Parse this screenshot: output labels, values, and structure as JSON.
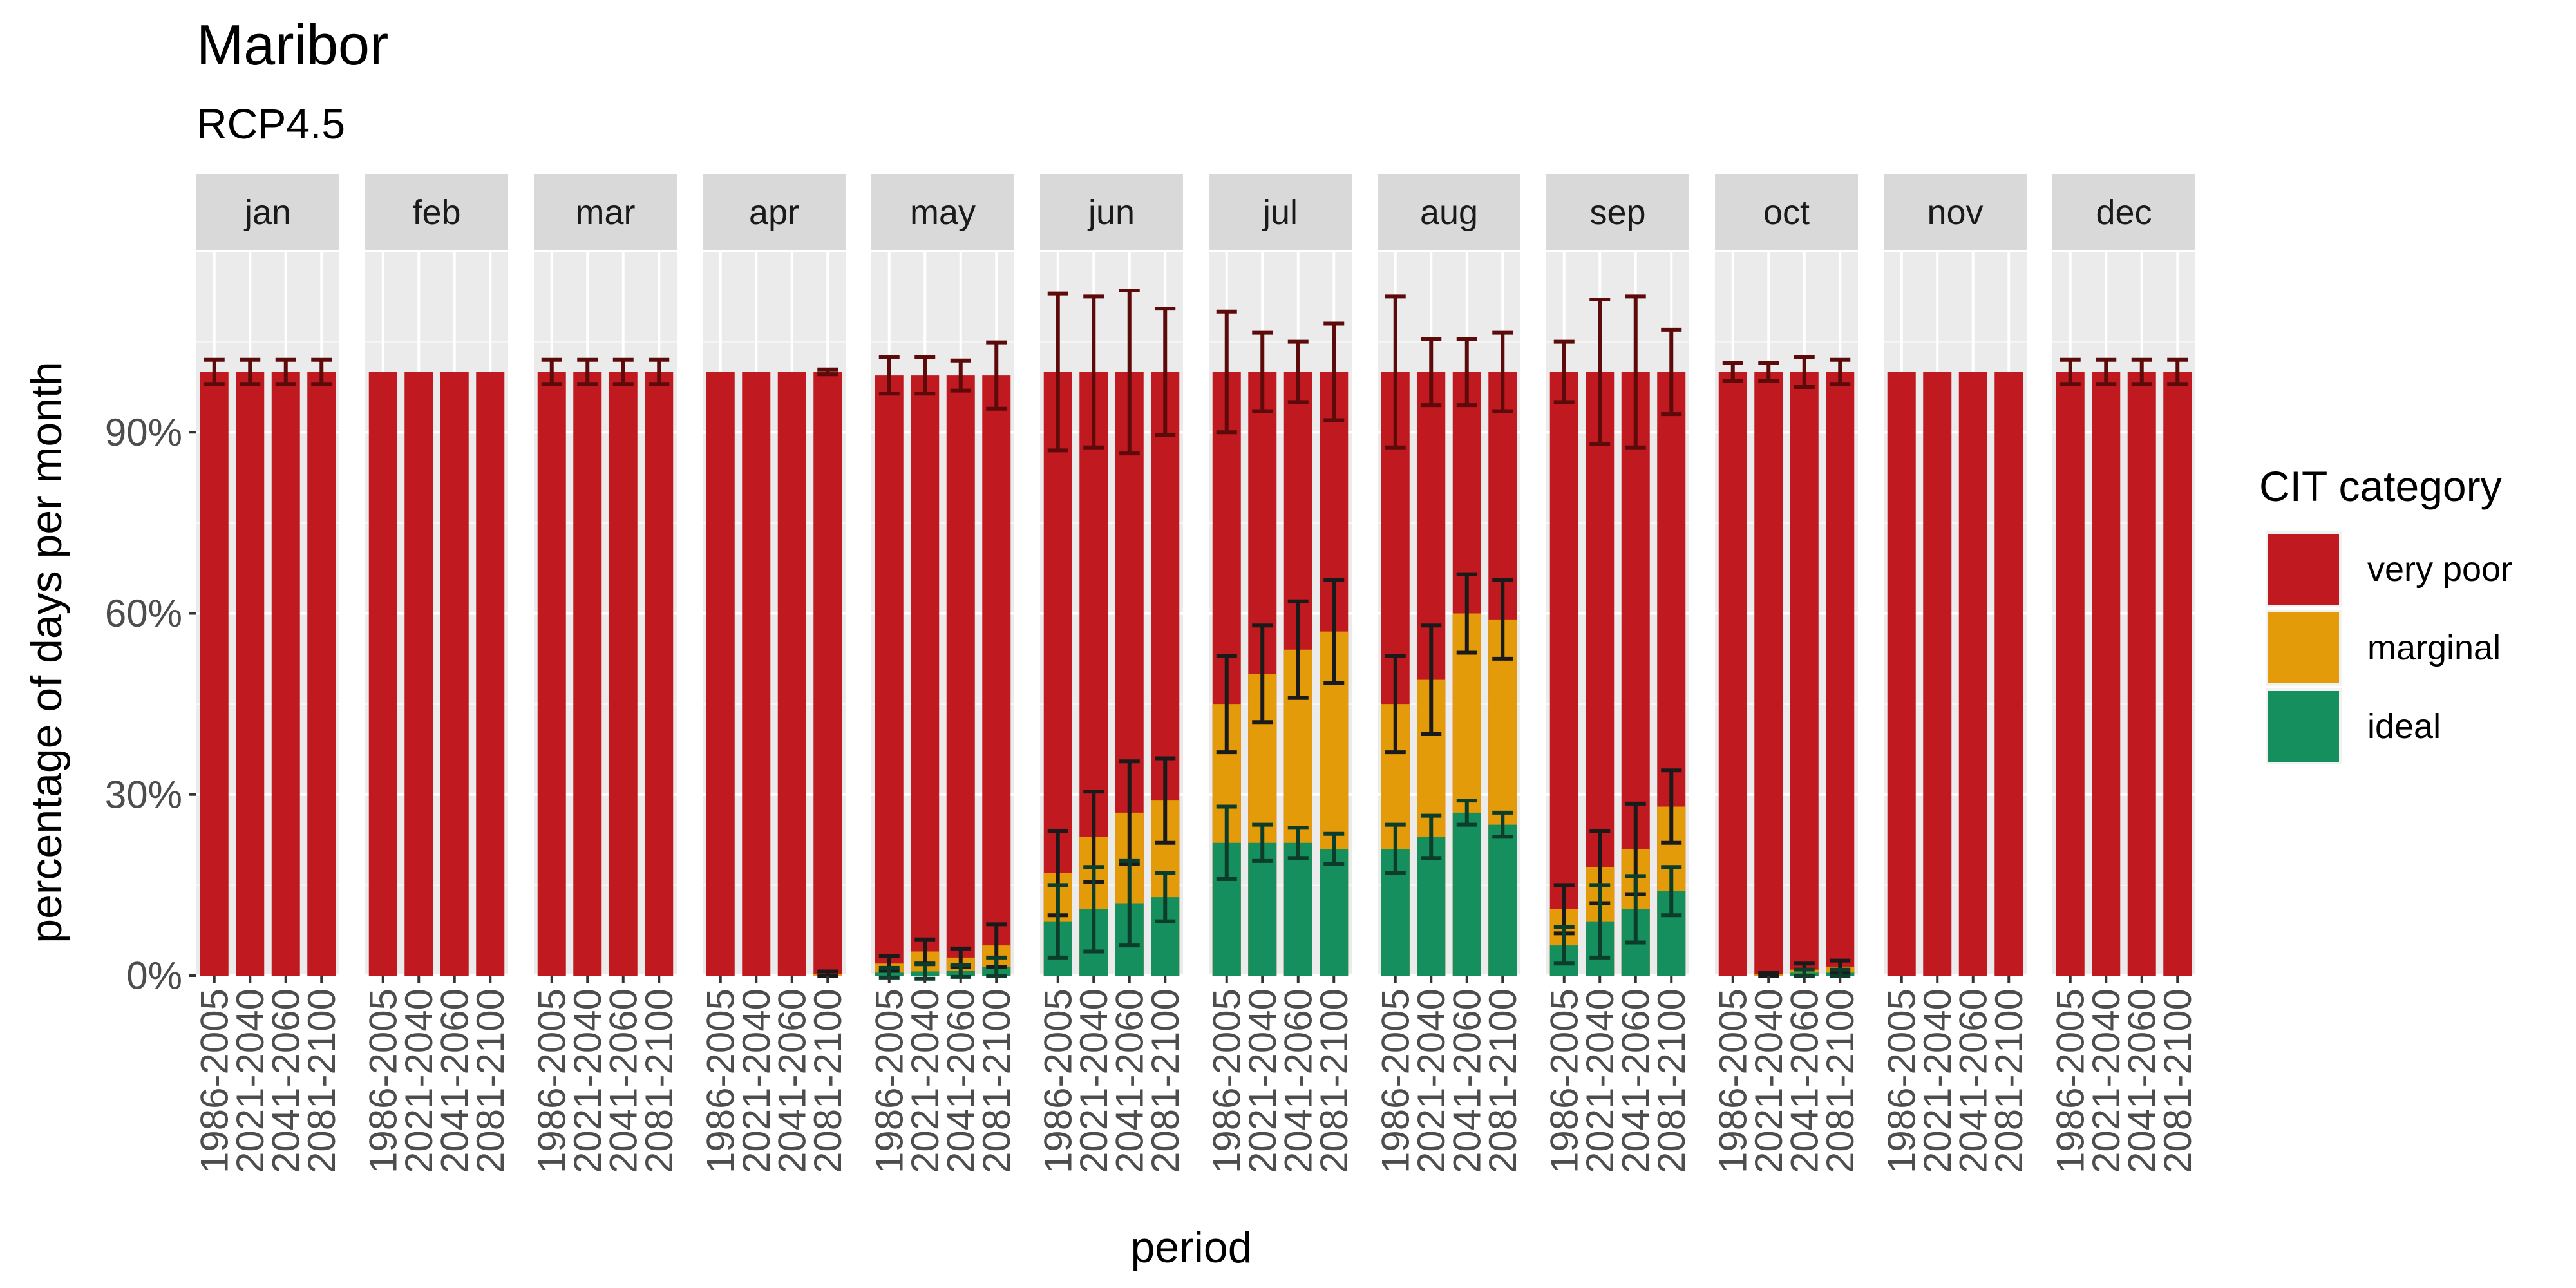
{
  "chart_data": {
    "type": "bar",
    "stacked": true,
    "title": "Maribor",
    "subtitle": "RCP4.5",
    "xlabel": "period",
    "ylabel": "percentage of days per month",
    "ylim": [
      0,
      120
    ],
    "y_ticks": [
      0,
      30,
      60,
      90
    ],
    "y_tick_labels": [
      "0%",
      "30%",
      "60%",
      "90%"
    ],
    "grid": true,
    "legend": {
      "title": "CIT category",
      "position": "right",
      "entries": [
        {
          "name": "very poor",
          "color": "#C0191F"
        },
        {
          "name": "marginal",
          "color": "#E49B0A"
        },
        {
          "name": "ideal",
          "color": "#168F5E"
        }
      ]
    },
    "categories": [
      "1986-2005",
      "2021-2040",
      "2041-2060",
      "2081-2100"
    ],
    "series_order": [
      "ideal",
      "marginal",
      "very poor"
    ],
    "colors": {
      "very poor": "#C0191F",
      "marginal": "#E49B0A",
      "ideal": "#168F5E",
      "errorbar_top": "#5C0A0A",
      "errorbar_mid": "#1a1a1a",
      "errorbar_low": "#0B3D2A"
    },
    "panels": [
      {
        "month": "jan",
        "ideal": [
          0,
          0,
          0,
          0
        ],
        "marginal": [
          0,
          0,
          0,
          0
        ],
        "very_poor": [
          100,
          100,
          100,
          100
        ],
        "err_ideal": [
          0,
          0,
          0,
          0
        ],
        "err_marginal": [
          0,
          0,
          0,
          0
        ],
        "err_very_poor": [
          2,
          2,
          2,
          2
        ]
      },
      {
        "month": "feb",
        "ideal": [
          0,
          0,
          0,
          0
        ],
        "marginal": [
          0,
          0,
          0,
          0
        ],
        "very_poor": [
          100,
          100,
          100,
          100
        ],
        "err_ideal": [
          0,
          0,
          0,
          0
        ],
        "err_marginal": [
          0,
          0,
          0,
          0
        ],
        "err_very_poor": [
          0,
          0,
          0,
          0
        ]
      },
      {
        "month": "mar",
        "ideal": [
          0,
          0,
          0,
          0
        ],
        "marginal": [
          0,
          0,
          0,
          0
        ],
        "very_poor": [
          100,
          100,
          100,
          100
        ],
        "err_ideal": [
          0,
          0,
          0,
          0
        ],
        "err_marginal": [
          0,
          0,
          0,
          0
        ],
        "err_very_poor": [
          2,
          2,
          2,
          2
        ]
      },
      {
        "month": "apr",
        "ideal": [
          0,
          0,
          0,
          0
        ],
        "marginal": [
          0,
          0,
          0,
          0.3
        ],
        "very_poor": [
          100,
          100,
          100,
          100
        ],
        "err_ideal": [
          0,
          0,
          0,
          0
        ],
        "err_marginal": [
          0,
          0,
          0,
          0.4
        ],
        "err_very_poor": [
          0,
          0,
          0,
          0.4
        ]
      },
      {
        "month": "may",
        "ideal": [
          0.5,
          0.7,
          0.8,
          1.5
        ],
        "marginal": [
          2,
          4,
          3,
          5
        ],
        "very_poor": [
          99.4,
          99.4,
          99.4,
          99.4
        ],
        "err_ideal": [
          0.8,
          1.2,
          1.0,
          1.5
        ],
        "err_marginal": [
          1.2,
          2.0,
          1.5,
          3.5
        ],
        "err_very_poor": [
          3,
          3,
          2.5,
          5.5
        ]
      },
      {
        "month": "jun",
        "ideal": [
          9,
          11,
          12,
          13
        ],
        "marginal": [
          17,
          23,
          27,
          29
        ],
        "very_poor": [
          100,
          100,
          100,
          100
        ],
        "err_ideal": [
          6,
          7,
          7,
          4
        ],
        "err_marginal": [
          7,
          7.5,
          8.5,
          7
        ],
        "err_very_poor": [
          13,
          12.5,
          13.5,
          10.5
        ]
      },
      {
        "month": "jul",
        "ideal": [
          22,
          22,
          22,
          21
        ],
        "marginal": [
          45,
          50,
          54,
          57
        ],
        "very_poor": [
          100,
          100,
          100,
          100
        ],
        "err_ideal": [
          6,
          3,
          2.5,
          2.5
        ],
        "err_marginal": [
          8,
          8,
          8,
          8.5
        ],
        "err_very_poor": [
          10,
          6.5,
          5,
          8
        ]
      },
      {
        "month": "aug",
        "ideal": [
          21,
          23,
          27,
          25
        ],
        "marginal": [
          45,
          49,
          60,
          59
        ],
        "very_poor": [
          100,
          100,
          100,
          100
        ],
        "err_ideal": [
          4,
          3.5,
          2,
          2
        ],
        "err_marginal": [
          8,
          9,
          6.5,
          6.5
        ],
        "err_very_poor": [
          12.5,
          5.5,
          5.5,
          6.5
        ]
      },
      {
        "month": "sep",
        "ideal": [
          5,
          9,
          11,
          14
        ],
        "marginal": [
          11,
          18,
          21,
          28
        ],
        "very_poor": [
          100,
          100,
          100,
          100
        ],
        "err_ideal": [
          3,
          6,
          5.5,
          4
        ],
        "err_marginal": [
          4,
          6,
          7.5,
          6
        ],
        "err_very_poor": [
          5,
          12,
          12.5,
          7
        ]
      },
      {
        "month": "oct",
        "ideal": [
          0,
          0,
          0.5,
          0.5
        ],
        "marginal": [
          0,
          0.2,
          1,
          1.5
        ],
        "very_poor": [
          100,
          100,
          100,
          100
        ],
        "err_ideal": [
          0,
          0,
          0.5,
          0.5
        ],
        "err_marginal": [
          0,
          0.3,
          1,
          1
        ],
        "err_very_poor": [
          1.5,
          1.5,
          2.5,
          2
        ]
      },
      {
        "month": "nov",
        "ideal": [
          0,
          0,
          0,
          0
        ],
        "marginal": [
          0,
          0,
          0,
          0
        ],
        "very_poor": [
          100,
          100,
          100,
          100
        ],
        "err_ideal": [
          0,
          0,
          0,
          0
        ],
        "err_marginal": [
          0,
          0,
          0,
          0
        ],
        "err_very_poor": [
          0,
          0,
          0,
          0
        ]
      },
      {
        "month": "dec",
        "ideal": [
          0,
          0,
          0,
          0
        ],
        "marginal": [
          0,
          0,
          0,
          0
        ],
        "very_poor": [
          100,
          100,
          100,
          100
        ],
        "err_ideal": [
          0,
          0,
          0,
          0
        ],
        "err_marginal": [
          0,
          0,
          0,
          0
        ],
        "err_very_poor": [
          2,
          2,
          2,
          2
        ]
      }
    ]
  }
}
